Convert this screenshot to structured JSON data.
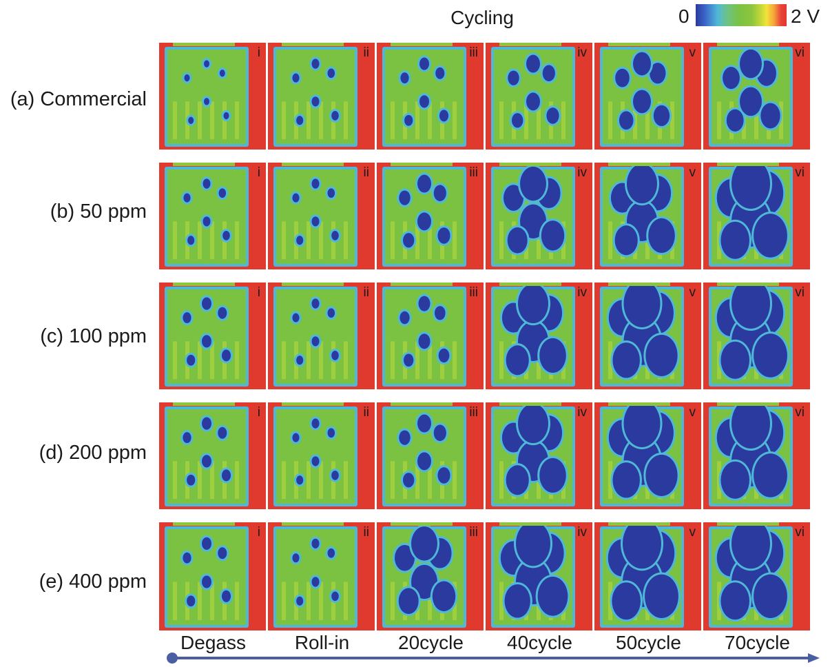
{
  "title": "Cycling",
  "colorbar": {
    "min_label": "0",
    "max_label": "2 V",
    "colors": {
      "low": "#2b3a9e",
      "mid": "#7cc242",
      "high": "#e03a2f"
    }
  },
  "rows": [
    {
      "label": "(a) Commercial",
      "depletion": [
        0.0,
        0.05,
        0.1,
        0.2,
        0.3,
        0.4
      ]
    },
    {
      "label": "(b) 50 ppm",
      "depletion": [
        0.05,
        0.05,
        0.2,
        0.5,
        0.6,
        0.8
      ]
    },
    {
      "label": "(c) 100 ppm",
      "depletion": [
        0.1,
        0.05,
        0.15,
        0.6,
        0.75,
        0.8
      ]
    },
    {
      "label": "(d) 200 ppm",
      "depletion": [
        0.1,
        0.05,
        0.2,
        0.6,
        0.75,
        0.8
      ]
    },
    {
      "label": "(e) 400 ppm",
      "depletion": [
        0.1,
        0.05,
        0.5,
        0.7,
        0.8,
        0.8
      ]
    }
  ],
  "columns": [
    "Degass",
    "Roll-in",
    "20cycle",
    "40cycle",
    "50cycle",
    "70cycle"
  ],
  "panel_labels": [
    "i",
    "ii",
    "iii",
    "iv",
    "v",
    "vi"
  ],
  "arrow_color": "#4a5fa3"
}
